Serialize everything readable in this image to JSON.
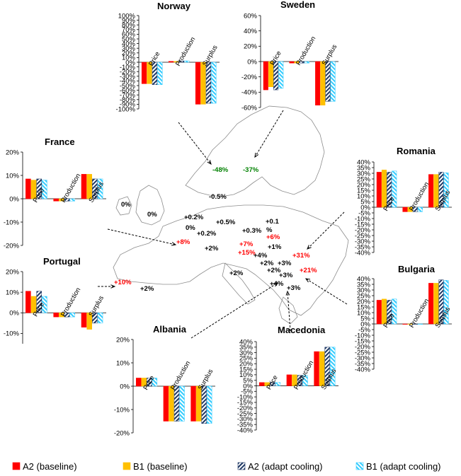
{
  "colors": {
    "a2_baseline": "#ff0000",
    "b1_baseline": "#ffc000",
    "a2_adapt_fill": "#1f3864",
    "b1_adapt_fill": "#33ccff",
    "positive_label": "#ff0000",
    "negative_label": "#008000",
    "neutral_label": "#000000"
  },
  "legend": [
    {
      "key": "a2_baseline",
      "label": "A2 (baseline)",
      "pattern": "solid-red"
    },
    {
      "key": "b1_baseline",
      "label": "B1 (baseline)",
      "pattern": "solid-orange"
    },
    {
      "key": "a2_adapt",
      "label": "A2 (adapt cooling)",
      "pattern": "hatch-dark"
    },
    {
      "key": "b1_adapt",
      "label": "B1 (adapt cooling)",
      "pattern": "hatch-light"
    }
  ],
  "map_labels": [
    {
      "id": "norway",
      "text": "-48%",
      "tone": "negative"
    },
    {
      "id": "sweden",
      "text": "-37%",
      "tone": "negative"
    },
    {
      "id": "denmark",
      "text": "-0.5%",
      "tone": "neutral"
    },
    {
      "id": "ireland",
      "text": "0%",
      "tone": "neutral"
    },
    {
      "id": "uk",
      "text": "0%",
      "tone": "neutral"
    },
    {
      "id": "netherlands",
      "text": "+0.2%",
      "tone": "neutral"
    },
    {
      "id": "belgium",
      "text": "0%",
      "tone": "neutral"
    },
    {
      "id": "luxembourg",
      "text": "+0.2%",
      "tone": "neutral"
    },
    {
      "id": "germany",
      "text": "+0.5%",
      "tone": "neutral"
    },
    {
      "id": "poland",
      "text": "+0.1",
      "tone": "neutral"
    },
    {
      "id": "poland_pct",
      "text": "%",
      "tone": "neutral"
    },
    {
      "id": "czech",
      "text": "+0.3%",
      "tone": "neutral"
    },
    {
      "id": "slovakia",
      "text": "+6%",
      "tone": "positive"
    },
    {
      "id": "france",
      "text": "+8%",
      "tone": "positive"
    },
    {
      "id": "switzerland",
      "text": "+2%",
      "tone": "neutral"
    },
    {
      "id": "austria",
      "text": "+7%",
      "tone": "positive"
    },
    {
      "id": "hungary",
      "text": "+1%",
      "tone": "neutral"
    },
    {
      "id": "slovenia",
      "text": "+15%",
      "tone": "positive"
    },
    {
      "id": "croatia",
      "text": "+4%",
      "tone": "neutral"
    },
    {
      "id": "romania",
      "text": "+31%",
      "tone": "positive"
    },
    {
      "id": "bosnia",
      "text": "+2%",
      "tone": "neutral"
    },
    {
      "id": "serbia",
      "text": "+3%",
      "tone": "neutral"
    },
    {
      "id": "montenegro",
      "text": "+2%",
      "tone": "neutral"
    },
    {
      "id": "bulgaria",
      "text": "+21%",
      "tone": "positive"
    },
    {
      "id": "italy",
      "text": "+2%",
      "tone": "neutral"
    },
    {
      "id": "macedonia",
      "text": "+3%",
      "tone": "neutral"
    },
    {
      "id": "albania",
      "text": "+4%",
      "tone": "neutral"
    },
    {
      "id": "greece",
      "text": "+3%",
      "tone": "neutral"
    },
    {
      "id": "portugal",
      "text": "+10%",
      "tone": "positive"
    },
    {
      "id": "spain",
      "text": "+2%",
      "tone": "neutral"
    }
  ],
  "chart_data": [
    {
      "id": "norway",
      "type": "bar",
      "title": "Norway",
      "categories": [
        "Price",
        "Production",
        "Surplus"
      ],
      "ylim": [
        -100,
        100
      ],
      "yticks": [
        -100,
        -90,
        -80,
        -70,
        -60,
        -50,
        -40,
        -30,
        -20,
        -10,
        0,
        10,
        20,
        30,
        40,
        50,
        60,
        70,
        80,
        90,
        100
      ],
      "y_unit": "%",
      "series": [
        {
          "name": "A2 (baseline)",
          "values": [
            -46,
            2,
            -90
          ]
        },
        {
          "name": "B1 (baseline)",
          "values": [
            -46,
            2,
            -90
          ]
        },
        {
          "name": "A2 (adapt cooling)",
          "values": [
            -48,
            3,
            -88
          ]
        },
        {
          "name": "B1 (adapt cooling)",
          "values": [
            -48,
            3,
            -88
          ]
        }
      ]
    },
    {
      "id": "sweden",
      "type": "bar",
      "title": "Sweden",
      "categories": [
        "Price",
        "Production",
        "Surplus"
      ],
      "ylim": [
        -60,
        60
      ],
      "yticks": [
        -60,
        -40,
        -20,
        0,
        20,
        40,
        60
      ],
      "y_unit": "%",
      "series": [
        {
          "name": "A2 (baseline)",
          "values": [
            -37,
            -2,
            -57
          ]
        },
        {
          "name": "B1 (baseline)",
          "values": [
            -33,
            -2,
            -57
          ]
        },
        {
          "name": "A2 (adapt cooling)",
          "values": [
            -37,
            -2,
            -52
          ]
        },
        {
          "name": "B1 (adapt cooling)",
          "values": [
            -35,
            -2,
            -52
          ]
        }
      ]
    },
    {
      "id": "france",
      "type": "bar",
      "title": "France",
      "categories": [
        "Price",
        "Production",
        "Surplus"
      ],
      "ylim": [
        -20,
        20
      ],
      "yticks": [
        -20,
        -10,
        0,
        10,
        20
      ],
      "y_unit": "%",
      "series": [
        {
          "name": "A2 (baseline)",
          "values": [
            8.5,
            -1,
            10.5
          ]
        },
        {
          "name": "B1 (baseline)",
          "values": [
            8,
            -1,
            10.5
          ]
        },
        {
          "name": "A2 (adapt cooling)",
          "values": [
            8.5,
            -1,
            8.5
          ]
        },
        {
          "name": "B1 (adapt cooling)",
          "values": [
            8,
            -1,
            8.5
          ]
        }
      ]
    },
    {
      "id": "portugal",
      "type": "bar",
      "title": "Portugal",
      "categories": [
        "Price",
        "Production",
        "Surplus"
      ],
      "ylim": [
        -15,
        20
      ],
      "yticks": [
        -10,
        0,
        10,
        20
      ],
      "y_unit": "%",
      "series": [
        {
          "name": "A2 (baseline)",
          "values": [
            10.5,
            -2,
            -7
          ]
        },
        {
          "name": "B1 (baseline)",
          "values": [
            8,
            -2,
            -8
          ]
        },
        {
          "name": "A2 (adapt cooling)",
          "values": [
            10.5,
            -2,
            -5
          ]
        },
        {
          "name": "B1 (adapt cooling)",
          "values": [
            8,
            -2,
            -5
          ]
        }
      ]
    },
    {
      "id": "romania",
      "type": "bar",
      "title": "Romania",
      "categories": [
        "Price",
        "Production",
        "Surplus"
      ],
      "ylim": [
        -40,
        40
      ],
      "yticks": [
        -40,
        -35,
        -30,
        -25,
        -20,
        -15,
        -10,
        -5,
        0,
        5,
        10,
        15,
        20,
        25,
        30,
        35,
        40
      ],
      "y_unit": "%",
      "series": [
        {
          "name": "A2 (baseline)",
          "values": [
            31,
            -4,
            29
          ]
        },
        {
          "name": "B1 (baseline)",
          "values": [
            33,
            -4,
            29
          ]
        },
        {
          "name": "A2 (adapt cooling)",
          "values": [
            31,
            -4,
            31
          ]
        },
        {
          "name": "B1 (adapt cooling)",
          "values": [
            32,
            -4,
            30.5
          ]
        }
      ]
    },
    {
      "id": "bulgaria",
      "type": "bar",
      "title": "Bulgaria",
      "categories": [
        "Price",
        "Production",
        "Surplus"
      ],
      "ylim": [
        -40,
        40
      ],
      "yticks": [
        -40,
        -35,
        -30,
        -25,
        -20,
        -15,
        -10,
        -5,
        0,
        5,
        10,
        15,
        20,
        25,
        30,
        35,
        40
      ],
      "y_unit": "%",
      "series": [
        {
          "name": "A2 (baseline)",
          "values": [
            21,
            0,
            36
          ]
        },
        {
          "name": "B1 (baseline)",
          "values": [
            22,
            0,
            36
          ]
        },
        {
          "name": "A2 (adapt cooling)",
          "values": [
            21,
            0,
            39
          ]
        },
        {
          "name": "B1 (adapt cooling)",
          "values": [
            22,
            0,
            38.5
          ]
        }
      ]
    },
    {
      "id": "albania",
      "type": "bar",
      "title": "Albania",
      "categories": [
        "Price",
        "Production",
        "Surplus"
      ],
      "ylim": [
        -20,
        20
      ],
      "yticks": [
        -20,
        -10,
        0,
        10,
        20
      ],
      "y_unit": "%",
      "series": [
        {
          "name": "A2 (baseline)",
          "values": [
            3.5,
            -15,
            -15
          ]
        },
        {
          "name": "B1 (baseline)",
          "values": [
            3.5,
            -15,
            -15
          ]
        },
        {
          "name": "A2 (adapt cooling)",
          "values": [
            3.5,
            -15,
            -16
          ]
        },
        {
          "name": "B1 (adapt cooling)",
          "values": [
            3.5,
            -15,
            -16
          ]
        }
      ]
    },
    {
      "id": "macedonia",
      "type": "bar",
      "title": "Macedonia",
      "categories": [
        "Price",
        "Production",
        "Surplus"
      ],
      "ylim": [
        -40,
        40
      ],
      "yticks": [
        -40,
        -35,
        -30,
        -25,
        -20,
        -15,
        -10,
        -5,
        0,
        5,
        10,
        15,
        20,
        25,
        30,
        35,
        40
      ],
      "y_unit": "%",
      "series": [
        {
          "name": "A2 (baseline)",
          "values": [
            3,
            10,
            31
          ]
        },
        {
          "name": "B1 (baseline)",
          "values": [
            3,
            10,
            31
          ]
        },
        {
          "name": "A2 (adapt cooling)",
          "values": [
            3,
            9.5,
            35
          ]
        },
        {
          "name": "B1 (adapt cooling)",
          "values": [
            3,
            9.5,
            35
          ]
        }
      ]
    }
  ]
}
